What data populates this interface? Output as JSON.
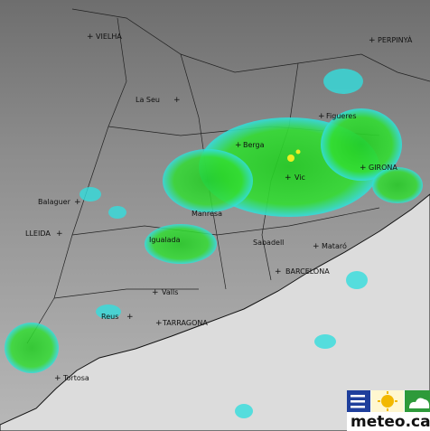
{
  "places": [
    "VIELHA",
    "PERPINYÀ",
    "La Seu",
    "Berga",
    "Figueres",
    "GIRONA",
    "Vic",
    "Balaguer",
    "LLEIDA",
    "Manresa",
    "Igualada",
    "Sabadell",
    "Mataró",
    "BARCELONA",
    "Valls",
    "Reus",
    "TARRAGONA",
    "Tortosa"
  ],
  "logo": {
    "text": "meteo.cat"
  }
}
